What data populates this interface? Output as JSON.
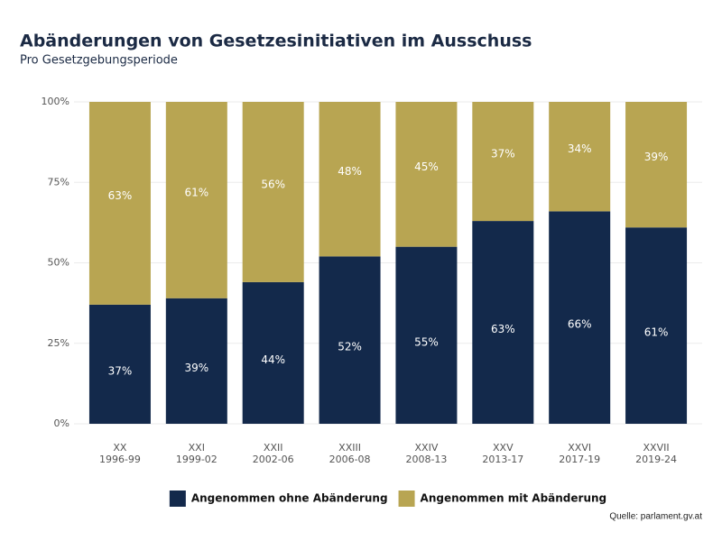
{
  "chart_data": {
    "type": "stacked_bar",
    "title": "Abänderungen von Gesetzesinitiativen im Ausschuss",
    "subtitle": "Pro Gesetzgebungsperiode",
    "source": "Quelle: parlament.gv.at",
    "categories": [
      [
        "XX",
        "1996-99"
      ],
      [
        "XXI",
        "1999-02"
      ],
      [
        "XXII",
        "2002-06"
      ],
      [
        "XXIII",
        "2006-08"
      ],
      [
        "XXIV",
        "2008-13"
      ],
      [
        "XXV",
        "2013-17"
      ],
      [
        "XXVI",
        "2017-19"
      ],
      [
        "XXVII",
        "2019-24"
      ]
    ],
    "series": [
      {
        "name": "Angenommen ohne Abänderung",
        "color": "#13294b",
        "values": [
          37,
          39,
          44,
          52,
          55,
          63,
          66,
          61
        ],
        "value_labels": [
          "37%",
          "39%",
          "44%",
          "52%",
          "55%",
          "63%",
          "66%",
          "61%"
        ]
      },
      {
        "name": "Angenommen mit Abänderung",
        "color": "#b8a552",
        "values": [
          63,
          61,
          56,
          48,
          45,
          37,
          34,
          39
        ],
        "value_labels": [
          "63%",
          "61%",
          "56%",
          "48%",
          "45%",
          "37%",
          "34%",
          "39%"
        ]
      }
    ],
    "ylim": [
      0,
      100
    ],
    "yticks": [
      {
        "value": 0,
        "label": "0%"
      },
      {
        "value": 25,
        "label": "25%"
      },
      {
        "value": 50,
        "label": "50%"
      },
      {
        "value": 75,
        "label": "75%"
      },
      {
        "value": 100,
        "label": "100%"
      }
    ],
    "grid": true,
    "legend": "bottom"
  }
}
